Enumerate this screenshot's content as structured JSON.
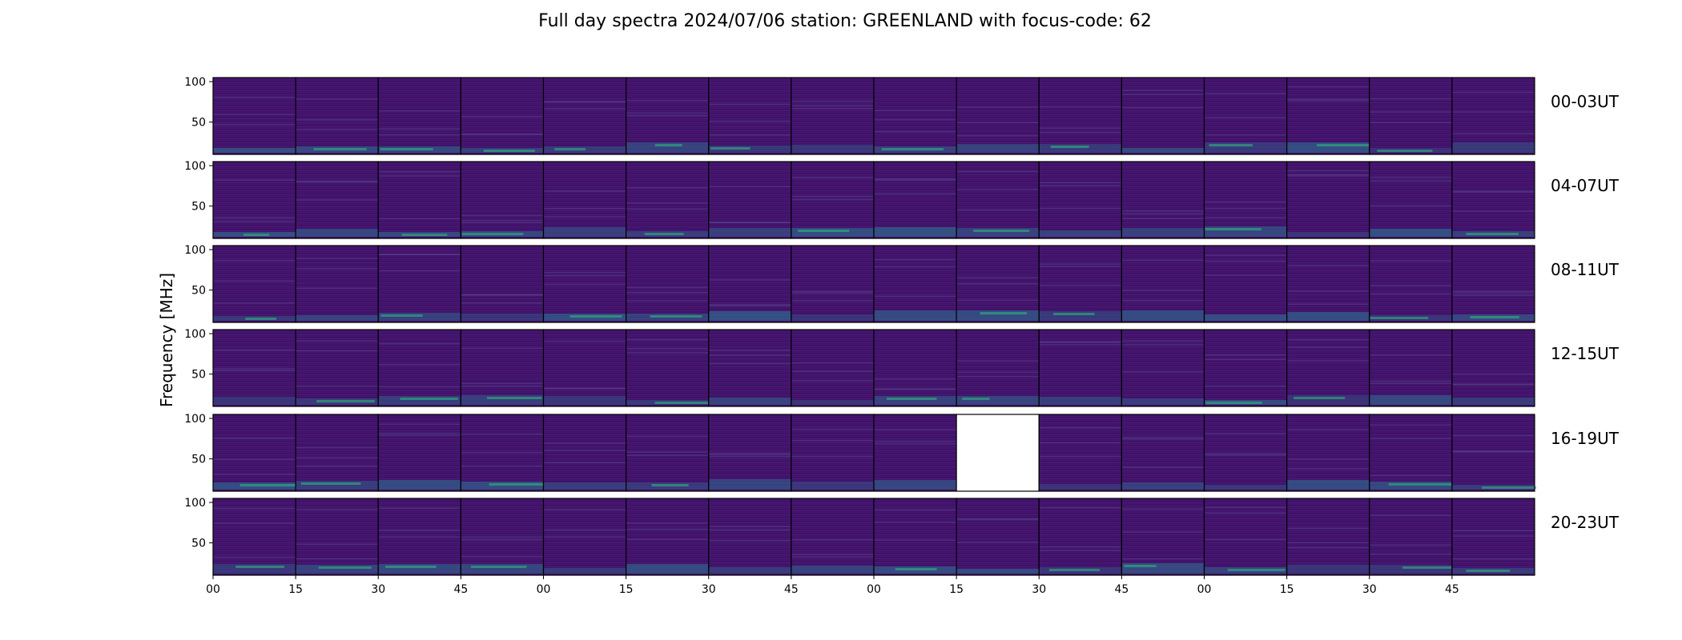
{
  "chart_data": {
    "type": "heatmap",
    "title": "Full day spectra 2024/07/06 station: GREENLAND with focus-code: 62",
    "ylabel": "Frequency [MHz]",
    "xlabel": "",
    "ylim": [
      10,
      105
    ],
    "y_ticks": [
      "50",
      "100"
    ],
    "x_ticks": [
      "00",
      "15",
      "30",
      "45",
      "00",
      "15",
      "30",
      "45",
      "00",
      "15",
      "30",
      "45",
      "00",
      "15",
      "30",
      "45"
    ],
    "colormap": "viridis",
    "colors": {
      "background": "#44106a",
      "low": "#3b1a6f",
      "mid": "#2e6b8e",
      "high": "#2fb47c",
      "missing": "#ffffff"
    },
    "rows": [
      {
        "label": "00-03UT",
        "missing_panels": []
      },
      {
        "label": "04-07UT",
        "missing_panels": []
      },
      {
        "label": "08-11UT",
        "missing_panels": []
      },
      {
        "label": "12-15UT",
        "missing_panels": []
      },
      {
        "label": "16-19UT",
        "missing_panels": [
          9
        ]
      },
      {
        "label": "20-23UT",
        "missing_panels": []
      }
    ],
    "panels_per_row": 16,
    "minutes_per_panel": 15
  }
}
